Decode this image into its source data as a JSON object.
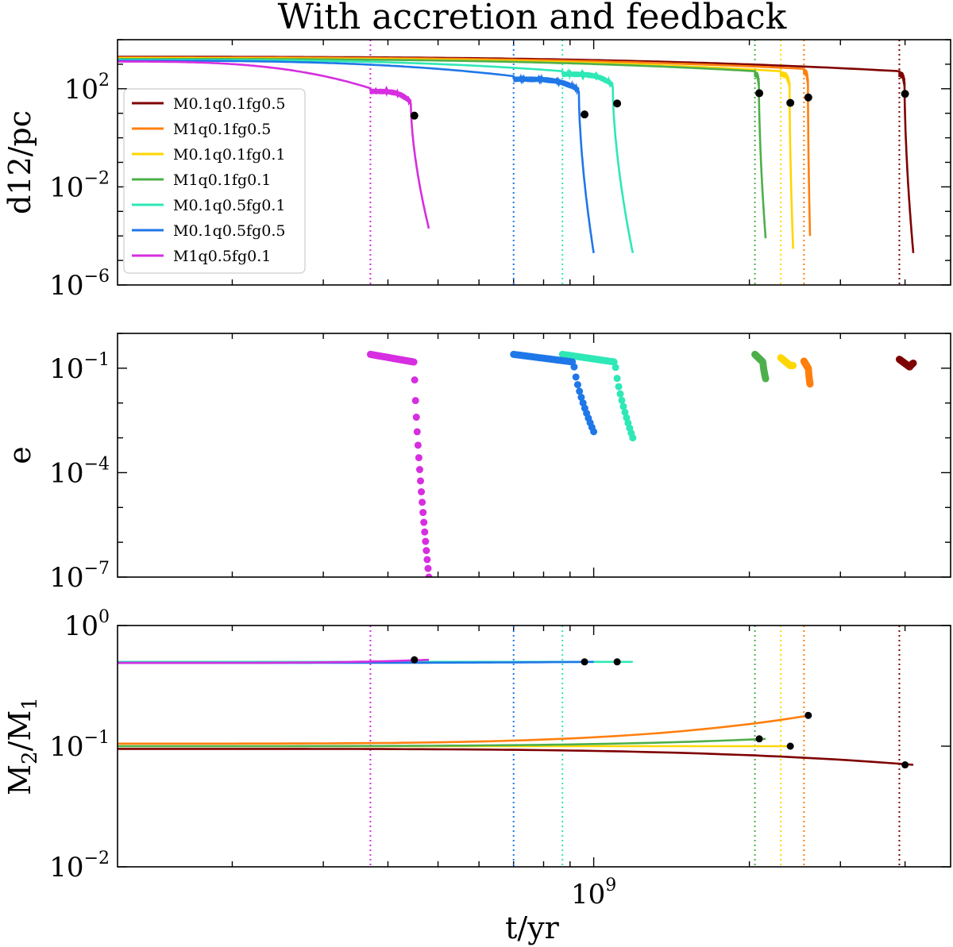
{
  "chart_data": {
    "type": "line",
    "title": "With accretion and feedback",
    "xlabel": "t/yr",
    "xscale": "log",
    "xlim": [
      120000000,
      4900000000
    ],
    "xticks": [
      {
        "value": 1000000000,
        "base": "10",
        "exp": "9"
      }
    ],
    "legend": {
      "position": "center-left of top panel",
      "entries": [
        "M0.1q0.1fg0.5",
        "M1q0.1fg0.5",
        "M0.1q0.1fg0.1",
        "M1q0.1fg0.1",
        "M0.1q0.5fg0.1",
        "M0.1q0.5fg0.5",
        "M1q0.5fg0.1"
      ]
    },
    "series": [
      {
        "name": "M0.1q0.1fg0.5",
        "color": "#7f0000",
        "t_stall": 3900000000,
        "t_merge": 4000000000,
        "t_end": 4150000000,
        "d_stall_pc": 400,
        "d_final_pc": 2e-05,
        "e_range": [
          0.14,
          0.18
        ],
        "q_start": 0.095,
        "q_merge": 0.07
      },
      {
        "name": "M1q0.1fg0.5",
        "color": "#ff7f0e",
        "t_stall": 2550000000,
        "t_merge": 2600000000,
        "t_end": 2620000000,
        "d_stall_pc": 500,
        "d_final_pc": 0.0001,
        "e_range": [
          0.035,
          0.16
        ],
        "q_start": 0.105,
        "q_merge": 0.18
      },
      {
        "name": "M0.1q0.1fg0.1",
        "color": "#ffd700",
        "t_stall": 2300000000,
        "t_merge": 2400000000,
        "t_end": 2430000000,
        "d_stall_pc": 400,
        "d_final_pc": 3e-05,
        "e_range": [
          0.12,
          0.2
        ],
        "q_start": 0.1,
        "q_merge": 0.1
      },
      {
        "name": "M1q0.1fg0.1",
        "color": "#4daf4a",
        "t_stall": 2050000000,
        "t_merge": 2090000000,
        "t_end": 2150000000,
        "d_stall_pc": 400,
        "d_final_pc": 8e-05,
        "e_range": [
          0.05,
          0.25
        ],
        "q_start": 0.1,
        "q_merge": 0.115
      },
      {
        "name": "M0.1q0.5fg0.1",
        "color": "#2ee8b6",
        "t_stall": 870000000,
        "t_merge": 1110000000,
        "t_end": 1190000000,
        "d_stall_pc": 400,
        "d_final_pc": 2e-05,
        "e_range": [
          0.001,
          0.25
        ],
        "q_start": 0.5,
        "q_merge": 0.5
      },
      {
        "name": "M0.1q0.5fg0.5",
        "color": "#1f77e8",
        "t_stall": 700000000,
        "t_merge": 960000000,
        "t_end": 1000000000,
        "d_stall_pc": 250,
        "d_final_pc": 2e-05,
        "e_range": [
          0.0015,
          0.25
        ],
        "q_start": 0.49,
        "q_merge": 0.5
      },
      {
        "name": "M1q0.5fg0.1",
        "color": "#d62ee0",
        "t_stall": 370000000,
        "t_merge": 450000000,
        "t_end": 480000000,
        "d_stall_pc": 80,
        "d_final_pc": 0.0002,
        "e_range": [
          1e-07,
          0.25
        ],
        "q_start": 0.49,
        "q_merge": 0.52
      }
    ],
    "panels": [
      {
        "key": "d12",
        "ylabel_main": "d12/pc",
        "ylabel_sub": "",
        "yscale": "log",
        "ylim": [
          1e-06,
          10000
        ],
        "yticks": [
          {
            "value": 100,
            "base": "10",
            "exp": "2"
          },
          {
            "value": 0.01,
            "base": "10",
            "exp": "−2"
          },
          {
            "value": 1e-06,
            "base": "10",
            "exp": "−6"
          }
        ]
      },
      {
        "key": "e",
        "ylabel_main": "e",
        "ylabel_sub": "",
        "yscale": "log",
        "ylim": [
          1e-07,
          1
        ],
        "yticks": [
          {
            "value": 0.1,
            "base": "10",
            "exp": "−1"
          },
          {
            "value": 0.0001,
            "base": "10",
            "exp": "−4"
          },
          {
            "value": 1e-07,
            "base": "10",
            "exp": "−7"
          }
        ]
      },
      {
        "key": "q",
        "ylabel_main": "M",
        "ylabel_sub2": "2",
        "ylabel_slash": "/M",
        "ylabel_sub": "1",
        "yscale": "log",
        "ylim": [
          0.01,
          1
        ],
        "yticks": [
          {
            "value": 1,
            "base": "10",
            "exp": "0"
          },
          {
            "value": 0.1,
            "base": "10",
            "exp": "−1"
          },
          {
            "value": 0.01,
            "base": "10",
            "exp": "−2"
          }
        ]
      }
    ]
  }
}
